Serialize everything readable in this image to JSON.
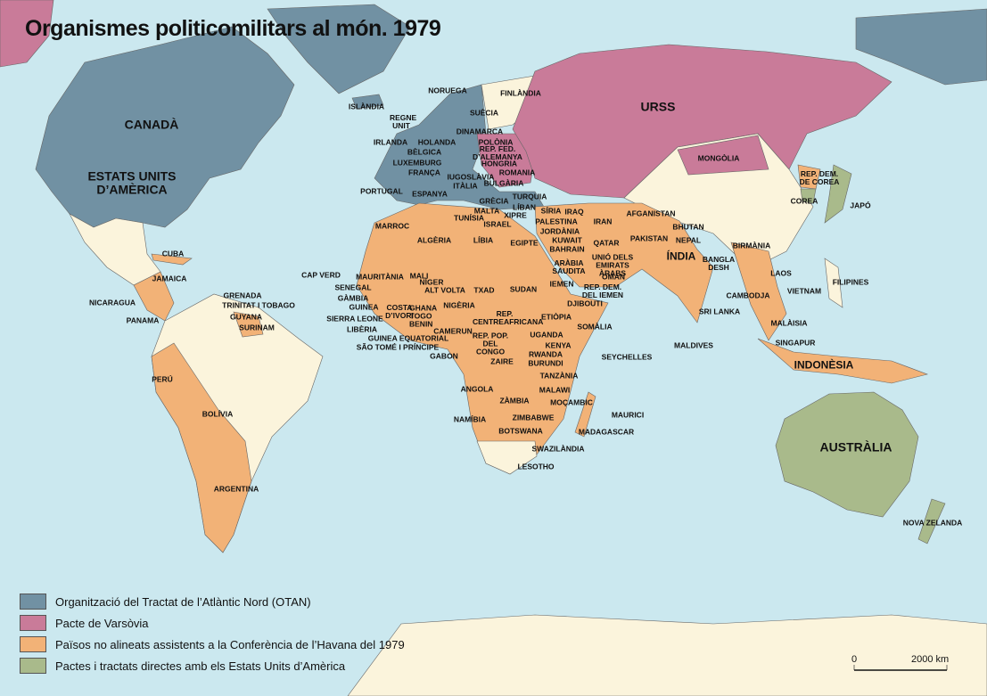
{
  "title": "Organismes politicomilitars al món. 1979",
  "labels": [
    "CANADÀ",
    "ESTATS UNITS D’AMÈRICA",
    "URSS",
    "AUSTRÀLIA",
    "ÍNDIA",
    "INDONÈSIA",
    "NORUEGA",
    "FINLÀNDIA",
    "ISLÀNDIA",
    "SUÈCIA",
    "REGNE UNIT",
    "DINAMARCA",
    "IRLANDA",
    "HOLANDA",
    "POLÒNIA",
    "BÈLGICA",
    "REP. FED. D’ALEMANYA",
    "LUXEMBURG",
    "HONGRIA",
    "FRANÇA",
    "ROMANIA",
    "IUGOSLÀVIA",
    "ITÀLIA",
    "BULGÀRIA",
    "PORTUGAL",
    "ESPANYA",
    "TURQUIA",
    "GRÈCIA",
    "MALTA",
    "LÍBAN",
    "XIPRE",
    "SÍRIA",
    "IRAQ",
    "PALESTINA",
    "ISRAEL",
    "JORDÀNIA",
    "KUWAIT",
    "IRAN",
    "AFGANISTAN",
    "MARROC",
    "TUNÍSIA",
    "ALGÈRIA",
    "LÍBIA",
    "EGIPTE",
    "BAHRAIN",
    "QATAR",
    "PAKISTAN",
    "BHUTAN",
    "NEPAL",
    "MONGÒLIA",
    "REP. DEM. DE COREA",
    "COREA",
    "JAPÓ",
    "BIRMÀNIA",
    "BANGLA DESH",
    "ARÀBIA SAUDITA",
    "UNIÓ DELS EMIRATS ÀRABS",
    "OMAN",
    "CUBA",
    "JAMAICA",
    "CAP VERD",
    "MAURITÀNIA",
    "MALI",
    "NÍGER",
    "SENEGAL",
    "GÀMBIA",
    "ALT VOLTA",
    "TXAD",
    "SUDAN",
    "IEMEN",
    "REP. DEM. DEL IEMEN",
    "LAOS",
    "FILIPINES",
    "NICARAGUA",
    "GRENADA",
    "TRINITAT I TOBAGO",
    "GUINEA",
    "COSTA D’IVORI",
    "GHANA TOGO BENIN",
    "NIGÈRIA",
    "DJIBOUTI",
    "CAMBODJA",
    "VIETNAM",
    "PANAMA",
    "GUYANA",
    "SURINAM",
    "SIERRA LEONE",
    "LIBÈRIA",
    "REP. CENTREAFRICANA",
    "ETIÒPIA",
    "SRI LANKA",
    "MALÀISIA",
    "SOMÀLIA",
    "CAMERUN",
    "GUINEA EQUATORIAL",
    "UGANDA",
    "SÃO TOMÉ I PRÍNCIPE",
    "REP. POP. DEL CONGO",
    "KENYA",
    "SINGAPUR",
    "MALDIVES",
    "GABON",
    "RWANDA",
    "SEYCHELLES",
    "ZAIRE",
    "BURUNDI",
    "PERÚ",
    "TANZÀNIA",
    "ANGOLA",
    "MALAWI",
    "ZÀMBIA",
    "MOÇAMBIC",
    "BOLÍVIA",
    "MAURICI",
    "NAMÍBIA",
    "ZIMBABWE",
    "BOTSWANA",
    "MADAGASCAR",
    "SWAZILÀNDIA",
    "LESOTHO",
    "ARGENTINA",
    "NOVA ZELANDA"
  ],
  "legend": [
    {
      "label": "Organització del Tractat de l’Atlàntic Nord (OTAN)",
      "color": "#7191a3"
    },
    {
      "label": "Pacte de Varsòvia",
      "color": "#c97b99"
    },
    {
      "label": "Països no alineats assistents a la Conferència de l’Havana del 1979",
      "color": "#f2b277"
    },
    {
      "label": "Pactes i tractats directes amb els Estats Units d’Amèrica",
      "color": "#a9ba8b"
    }
  ],
  "scale": {
    "start": "0",
    "end": "2000 km"
  }
}
